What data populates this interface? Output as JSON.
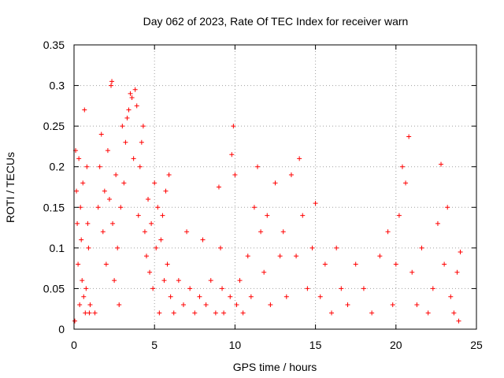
{
  "chart_data": {
    "type": "scatter",
    "title": "Day 062 of 2023, Rate Of TEC Index for receiver warn",
    "xlabel": "GPS time / hours",
    "ylabel": "ROTI / TECUs",
    "xlim": [
      0,
      25
    ],
    "ylim": [
      0,
      0.35
    ],
    "xticks": [
      0,
      5,
      10,
      15,
      20,
      25
    ],
    "xtick_labels": [
      "0",
      "5",
      "10",
      "15",
      "20",
      "25"
    ],
    "yticks": [
      0,
      0.05,
      0.1,
      0.15,
      0.2,
      0.25,
      0.3,
      0.35
    ],
    "ytick_labels": [
      "0",
      "0.05",
      "0.1",
      "0.15",
      "0.2",
      "0.25",
      "0.3",
      "0.35"
    ],
    "grid": true,
    "marker": "plus",
    "color": "#ff0000",
    "series": [
      {
        "points": [
          [
            0.05,
            0.01
          ],
          [
            0.1,
            0.22
          ],
          [
            0.15,
            0.17
          ],
          [
            0.2,
            0.13
          ],
          [
            0.25,
            0.08
          ],
          [
            0.3,
            0.21
          ],
          [
            0.35,
            0.03
          ],
          [
            0.4,
            0.15
          ],
          [
            0.5,
            0.06
          ],
          [
            0.6,
            0.04
          ],
          [
            0.7,
            0.02
          ],
          [
            0.8,
            0.2
          ],
          [
            0.9,
            0.1
          ],
          [
            1.0,
            0.03
          ],
          [
            0.65,
            0.27
          ],
          [
            0.45,
            0.11
          ],
          [
            0.55,
            0.18
          ],
          [
            0.75,
            0.05
          ],
          [
            0.85,
            0.13
          ],
          [
            0.95,
            0.02
          ],
          [
            1.3,
            0.02
          ],
          [
            1.5,
            0.15
          ],
          [
            1.6,
            0.2
          ],
          [
            1.7,
            0.24
          ],
          [
            1.8,
            0.12
          ],
          [
            1.9,
            0.17
          ],
          [
            2.0,
            0.08
          ],
          [
            2.1,
            0.22
          ],
          [
            2.2,
            0.16
          ],
          [
            2.3,
            0.3
          ],
          [
            2.35,
            0.305
          ],
          [
            2.4,
            0.13
          ],
          [
            2.5,
            0.06
          ],
          [
            2.6,
            0.19
          ],
          [
            2.7,
            0.1
          ],
          [
            2.8,
            0.03
          ],
          [
            2.9,
            0.15
          ],
          [
            3.0,
            0.25
          ],
          [
            3.1,
            0.18
          ],
          [
            3.2,
            0.23
          ],
          [
            3.3,
            0.26
          ],
          [
            3.4,
            0.27
          ],
          [
            3.5,
            0.29
          ],
          [
            3.6,
            0.285
          ],
          [
            3.7,
            0.21
          ],
          [
            3.8,
            0.295
          ],
          [
            3.9,
            0.275
          ],
          [
            4.0,
            0.14
          ],
          [
            4.1,
            0.2
          ],
          [
            4.2,
            0.23
          ],
          [
            4.3,
            0.25
          ],
          [
            4.4,
            0.12
          ],
          [
            4.5,
            0.09
          ],
          [
            4.6,
            0.16
          ],
          [
            4.7,
            0.07
          ],
          [
            4.8,
            0.13
          ],
          [
            4.9,
            0.05
          ],
          [
            5.0,
            0.18
          ],
          [
            5.1,
            0.1
          ],
          [
            5.2,
            0.15
          ],
          [
            5.3,
            0.02
          ],
          [
            5.4,
            0.11
          ],
          [
            5.5,
            0.14
          ],
          [
            5.6,
            0.06
          ],
          [
            5.7,
            0.17
          ],
          [
            5.8,
            0.08
          ],
          [
            5.9,
            0.19
          ],
          [
            6.0,
            0.04
          ],
          [
            6.2,
            0.02
          ],
          [
            6.5,
            0.06
          ],
          [
            6.8,
            0.03
          ],
          [
            7.0,
            0.12
          ],
          [
            7.2,
            0.05
          ],
          [
            7.5,
            0.02
          ],
          [
            7.8,
            0.04
          ],
          [
            8.0,
            0.11
          ],
          [
            8.2,
            0.03
          ],
          [
            8.5,
            0.06
          ],
          [
            8.8,
            0.02
          ],
          [
            9.0,
            0.175
          ],
          [
            9.1,
            0.1
          ],
          [
            9.2,
            0.05
          ],
          [
            9.3,
            0.02
          ],
          [
            9.7,
            0.04
          ],
          [
            9.8,
            0.215
          ],
          [
            9.9,
            0.25
          ],
          [
            10.0,
            0.19
          ],
          [
            10.1,
            0.03
          ],
          [
            10.3,
            0.06
          ],
          [
            10.5,
            0.02
          ],
          [
            10.8,
            0.09
          ],
          [
            11.0,
            0.04
          ],
          [
            11.2,
            0.15
          ],
          [
            11.4,
            0.2
          ],
          [
            11.6,
            0.12
          ],
          [
            11.8,
            0.07
          ],
          [
            12.0,
            0.14
          ],
          [
            12.2,
            0.03
          ],
          [
            12.5,
            0.18
          ],
          [
            12.8,
            0.09
          ],
          [
            13.0,
            0.12
          ],
          [
            13.2,
            0.04
          ],
          [
            13.5,
            0.19
          ],
          [
            13.8,
            0.09
          ],
          [
            14.0,
            0.21
          ],
          [
            14.2,
            0.14
          ],
          [
            14.5,
            0.05
          ],
          [
            14.8,
            0.1
          ],
          [
            15.0,
            0.155
          ],
          [
            15.3,
            0.04
          ],
          [
            15.6,
            0.08
          ],
          [
            16.0,
            0.02
          ],
          [
            16.3,
            0.1
          ],
          [
            16.6,
            0.05
          ],
          [
            17.0,
            0.03
          ],
          [
            17.5,
            0.08
          ],
          [
            18.0,
            0.05
          ],
          [
            18.5,
            0.02
          ],
          [
            19.0,
            0.09
          ],
          [
            19.5,
            0.12
          ],
          [
            19.8,
            0.03
          ],
          [
            20.0,
            0.08
          ],
          [
            20.2,
            0.14
          ],
          [
            20.4,
            0.2
          ],
          [
            20.6,
            0.18
          ],
          [
            20.8,
            0.237
          ],
          [
            21.0,
            0.07
          ],
          [
            21.3,
            0.03
          ],
          [
            21.6,
            0.1
          ],
          [
            22.0,
            0.02
          ],
          [
            22.3,
            0.05
          ],
          [
            22.6,
            0.13
          ],
          [
            22.8,
            0.203
          ],
          [
            23.0,
            0.08
          ],
          [
            23.2,
            0.15
          ],
          [
            23.4,
            0.04
          ],
          [
            23.6,
            0.02
          ],
          [
            23.8,
            0.07
          ],
          [
            23.9,
            0.01
          ],
          [
            24.0,
            0.095
          ]
        ]
      }
    ]
  }
}
